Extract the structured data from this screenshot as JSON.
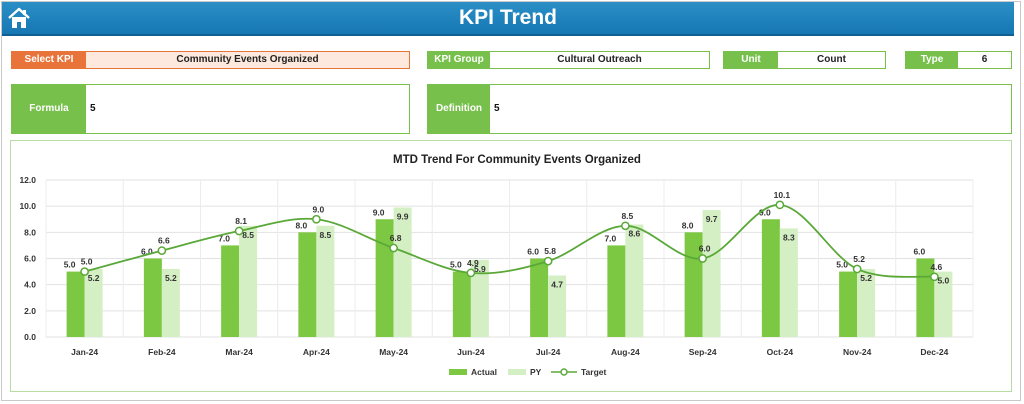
{
  "header": {
    "title": "KPI Trend",
    "home_icon": "home-icon"
  },
  "selectors": {
    "kpi_label": "Select KPI",
    "kpi_value": "Community Events Organized",
    "group_label": "KPI Group",
    "group_value": "Cultural Outreach",
    "unit_label": "Unit",
    "unit_value": "Count",
    "type_label": "Type",
    "type_value": "6"
  },
  "details": {
    "formula_label": "Formula",
    "formula_value": "5",
    "definition_label": "Definition",
    "definition_value": "5"
  },
  "colors": {
    "actual": "#7cc843",
    "py": "#d5efc4",
    "target": "#5aa838",
    "accent": "#e8743b",
    "banner": "#1e84bf"
  },
  "chart_data": {
    "type": "bar",
    "title": "MTD Trend For Community Events Organized",
    "categories": [
      "Jan-24",
      "Feb-24",
      "Mar-24",
      "Apr-24",
      "May-24",
      "Jun-24",
      "Jul-24",
      "Aug-24",
      "Sep-24",
      "Oct-24",
      "Nov-24",
      "Dec-24"
    ],
    "series": [
      {
        "name": "Actual",
        "type": "bar",
        "values": [
          5.0,
          6.0,
          7.0,
          8.0,
          9.0,
          5.0,
          6.0,
          7.0,
          8.0,
          9.0,
          5.0,
          6.0
        ]
      },
      {
        "name": "PY",
        "type": "bar",
        "values": [
          5.2,
          5.2,
          8.5,
          8.5,
          9.9,
          5.9,
          4.7,
          8.6,
          9.7,
          8.3,
          5.2,
          5.0
        ]
      },
      {
        "name": "Target",
        "type": "line",
        "values": [
          5.0,
          6.6,
          8.1,
          9.0,
          6.8,
          4.9,
          5.8,
          8.5,
          6.0,
          10.1,
          5.2,
          4.6
        ]
      }
    ],
    "ylim": [
      0,
      12
    ],
    "yticks": [
      "0.0",
      "2.0",
      "4.0",
      "6.0",
      "8.0",
      "10.0",
      "12.0"
    ],
    "grid": true,
    "legend": "bottom-center"
  }
}
